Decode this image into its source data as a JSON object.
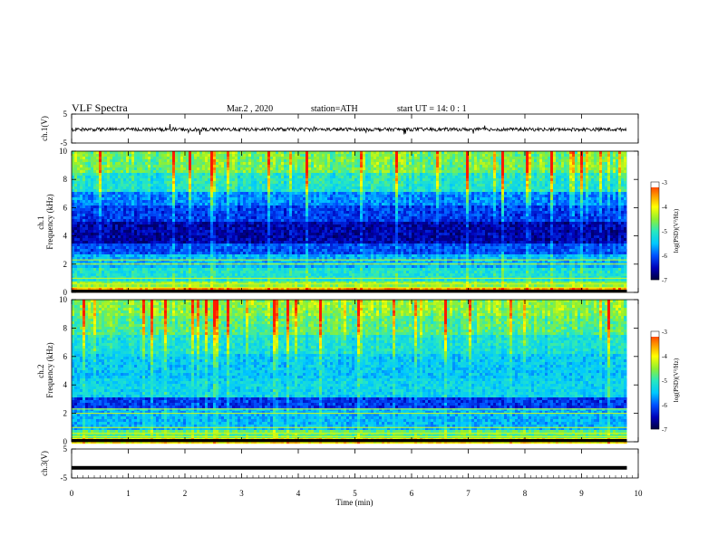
{
  "header": {
    "title": "VLF  Spectra",
    "date": "Mar.2  , 2020",
    "station": "station=ATH",
    "start": "start  UT  =    14: 0   : 1"
  },
  "colors": {
    "spectro_map": [
      "#00003a",
      "#0000b8",
      "#0050ff",
      "#00c8ff",
      "#28e8c0",
      "#90f030",
      "#ffff00",
      "#ff9000",
      "#ff1a00",
      "#ffffff"
    ],
    "trace": "#000000"
  },
  "chart_data": [
    {
      "type": "line",
      "panel": "ch1_waveform",
      "ylabel": "ch.1(V)",
      "y_ticks": [
        "5",
        "-5"
      ],
      "ylim": [
        -5,
        5
      ],
      "xlim": [
        0,
        10
      ],
      "trace_level_V": -0.3,
      "trace_end_min": 9.8
    },
    {
      "type": "heatmap",
      "panel": "ch1_spectrogram",
      "ylabel": "ch.1\nFrequency (kHz)",
      "y_ticks": [
        "10",
        "8",
        "6",
        "4",
        "2",
        "0"
      ],
      "ylim_kHz": [
        0,
        10
      ],
      "xlim_min": [
        0,
        10
      ],
      "data_end_min": 9.8,
      "colorbar": {
        "label": "log(PSD)(V²/Hz)",
        "ticks": [
          "-3",
          "-4",
          "-5",
          "-6",
          "-7"
        ],
        "range": [
          -7,
          -3
        ]
      },
      "band_levels_log_psd": [
        {
          "f_kHz": [
            0.0,
            0.3
          ],
          "v": -3.6
        },
        {
          "f_kHz": [
            0.3,
            0.8
          ],
          "v": -4.6
        },
        {
          "f_kHz": [
            0.8,
            1.8
          ],
          "v": -5.2
        },
        {
          "f_kHz": [
            1.8,
            2.6
          ],
          "v": -5.6
        },
        {
          "f_kHz": [
            2.6,
            3.4
          ],
          "v": -6.1
        },
        {
          "f_kHz": [
            3.4,
            5.0
          ],
          "v": -6.6
        },
        {
          "f_kHz": [
            5.0,
            6.2
          ],
          "v": -6.2
        },
        {
          "f_kHz": [
            6.2,
            7.2
          ],
          "v": -5.9
        },
        {
          "f_kHz": [
            7.2,
            8.5
          ],
          "v": -5.3
        },
        {
          "f_kHz": [
            8.5,
            10.0
          ],
          "v": -4.9
        }
      ]
    },
    {
      "type": "heatmap",
      "panel": "ch2_spectrogram",
      "ylabel": "ch.2\nFrequency (kHz)",
      "y_ticks": [
        "10",
        "8",
        "6",
        "4",
        "2",
        "0"
      ],
      "ylim_kHz": [
        0,
        10
      ],
      "xlim_min": [
        0,
        10
      ],
      "data_end_min": 9.8,
      "colorbar": {
        "label": "log(PSD)(V²/Hz)",
        "ticks": [
          "-3",
          "-4",
          "-5",
          "-6",
          "-7"
        ],
        "range": [
          -7,
          -3
        ]
      },
      "band_levels_log_psd": [
        {
          "f_kHz": [
            0.0,
            0.4
          ],
          "v": -4.0
        },
        {
          "f_kHz": [
            0.4,
            1.0
          ],
          "v": -4.8
        },
        {
          "f_kHz": [
            1.0,
            2.4
          ],
          "v": -5.6
        },
        {
          "f_kHz": [
            2.4,
            3.2
          ],
          "v": -6.2
        },
        {
          "f_kHz": [
            3.2,
            4.6
          ],
          "v": -5.4
        },
        {
          "f_kHz": [
            4.6,
            6.2
          ],
          "v": -5.5
        },
        {
          "f_kHz": [
            6.2,
            7.5
          ],
          "v": -5.3
        },
        {
          "f_kHz": [
            7.5,
            8.8
          ],
          "v": -5.0
        },
        {
          "f_kHz": [
            8.8,
            10.0
          ],
          "v": -4.8
        }
      ]
    },
    {
      "type": "line",
      "panel": "ch3_waveform",
      "ylabel": "ch.3(V)",
      "y_ticks": [
        "5",
        "-5"
      ],
      "ylim": [
        -5,
        5
      ],
      "xlim": [
        0,
        10
      ],
      "trace_level_V": -1.5,
      "trace_end_min": 9.8
    }
  ],
  "x_axis": {
    "label": "Time  (min)",
    "ticks": [
      "0",
      "1",
      "2",
      "3",
      "4",
      "5",
      "6",
      "7",
      "8",
      "9",
      "10"
    ]
  }
}
